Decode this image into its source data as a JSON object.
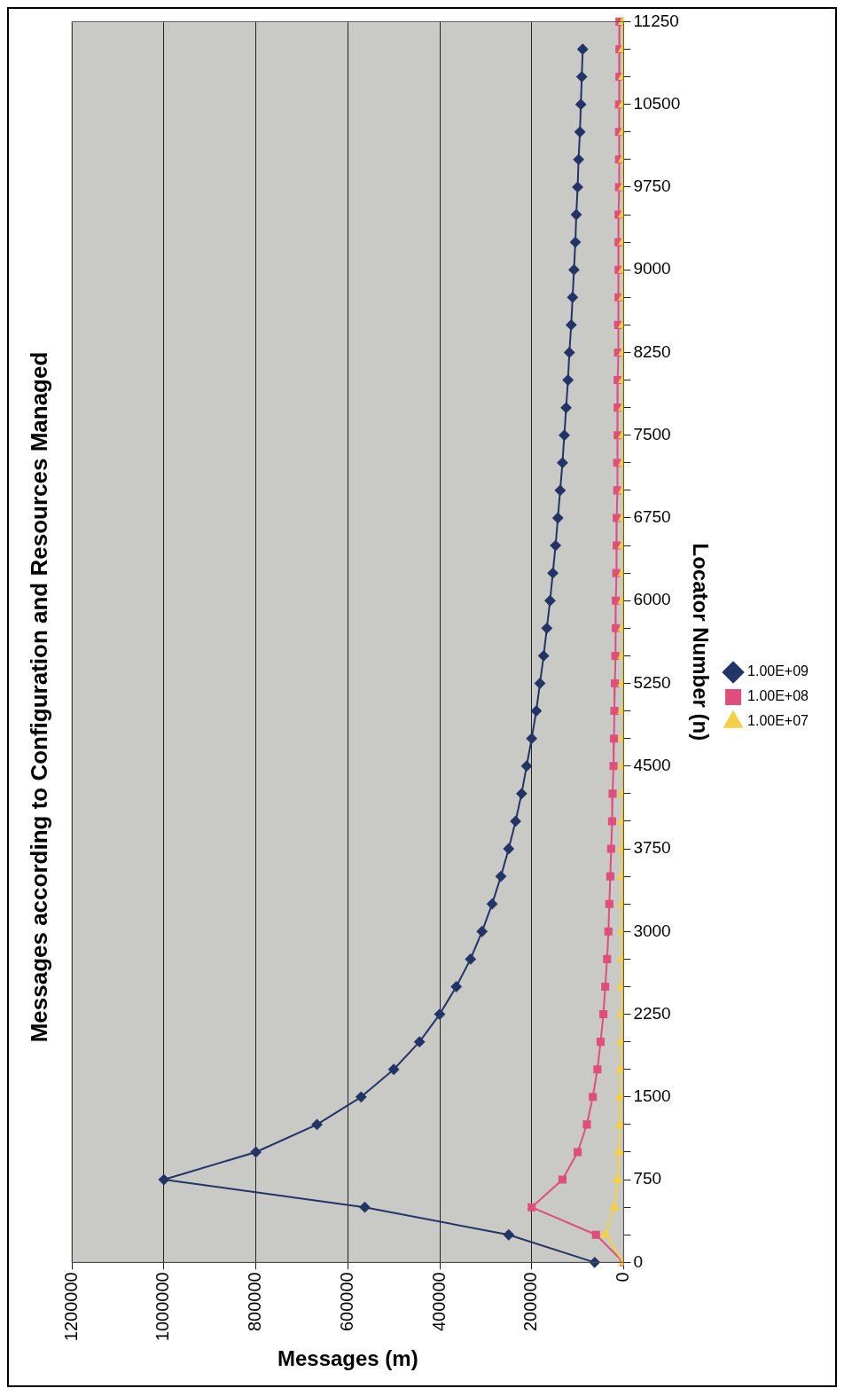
{
  "chart_data": {
    "type": "line",
    "orientation": "horizontal",
    "title": "Messages according to Configuration and Resources Managed",
    "xlabel": "Messages (m)",
    "ylabel": "Locator Number (n)",
    "categories": [
      "11250",
      null,
      null,
      "10500",
      null,
      null,
      "9750",
      null,
      null,
      "9000",
      null,
      null,
      "8250",
      null,
      null,
      "7500",
      null,
      null,
      "6750",
      null,
      null,
      "6000",
      null,
      null,
      "5250",
      null,
      null,
      "4500",
      null,
      null,
      "3750",
      null,
      null,
      "3000",
      null,
      null,
      "2250",
      null,
      null,
      "1500",
      null,
      null,
      "750",
      null,
      null,
      "0"
    ],
    "xlim": [
      1200000,
      0
    ],
    "xticks": [
      1200000,
      1000000,
      800000,
      600000,
      400000,
      200000,
      0
    ],
    "grid": "x",
    "legend": "right",
    "line_style": "solid",
    "series": [
      {
        "name": "1.00E+09",
        "color": "#233466",
        "marker": "diamond",
        "values": [
          null,
          89000,
          91000,
          93000,
          95000,
          98000,
          100000,
          103000,
          105000,
          108000,
          111000,
          114000,
          118000,
          121000,
          125000,
          129000,
          133000,
          138000,
          143000,
          148000,
          154000,
          160000,
          167000,
          174000,
          182000,
          190000,
          200000,
          211000,
          222000,
          235000,
          250000,
          267000,
          286000,
          308000,
          333000,
          364000,
          400000,
          444000,
          500000,
          571000,
          667000,
          800000,
          1000000,
          563000,
          250000,
          63000
        ]
      },
      {
        "name": "1.00E+08",
        "color": "#e04f7c",
        "marker": "square",
        "values": [
          9000,
          9000,
          9000,
          10000,
          10000,
          10000,
          10000,
          11000,
          11000,
          11000,
          11000,
          12000,
          12000,
          13000,
          13000,
          13000,
          14000,
          14000,
          15000,
          15000,
          16000,
          17000,
          17000,
          18000,
          19000,
          20000,
          21000,
          22000,
          24000,
          25000,
          27000,
          29000,
          31000,
          33000,
          36000,
          40000,
          44000,
          50000,
          57000,
          67000,
          80000,
          100000,
          133000,
          200000,
          60000,
          0
        ]
      },
      {
        "name": "1.00E+07",
        "color": "#f5cf45",
        "marker": "triangle",
        "values": [
          1000,
          1000,
          1000,
          1000,
          1000,
          1000,
          1000,
          1000,
          1000,
          1000,
          1000,
          1000,
          1000,
          1000,
          1000,
          1000,
          1000,
          1000,
          1000,
          2000,
          2000,
          2000,
          2000,
          2000,
          2000,
          2000,
          2000,
          2000,
          2000,
          3000,
          3000,
          3000,
          3000,
          3000,
          4000,
          4000,
          4000,
          5000,
          6000,
          7000,
          8000,
          10000,
          13000,
          20000,
          40000,
          0
        ]
      }
    ]
  }
}
